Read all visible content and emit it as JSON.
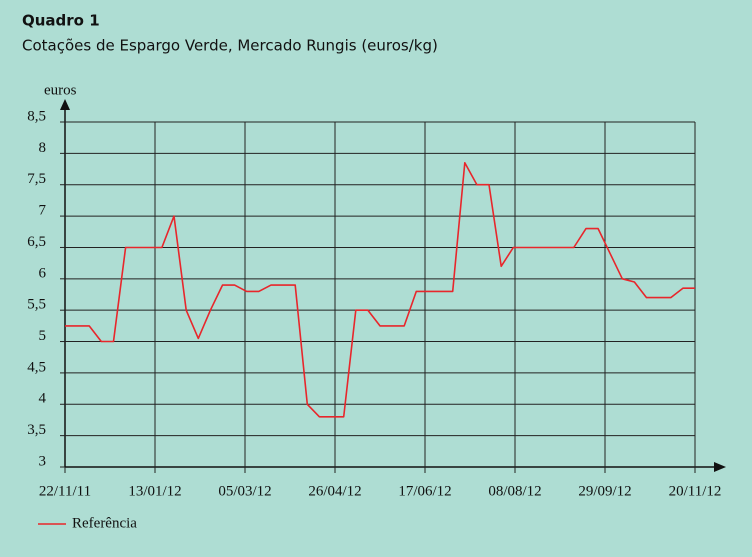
{
  "chart_data": {
    "type": "line",
    "title": "Quadro 1",
    "subtitle": "Cotações de Espargo Verde, Mercado Rungis (euros/kg)",
    "y_label": "euros",
    "x": [
      "22/11/11",
      "29/11/11",
      "06/12/11",
      "13/12/11",
      "20/12/11",
      "27/12/11",
      "03/01/12",
      "10/01/12",
      "17/01/12",
      "24/01/12",
      "31/01/12",
      "07/02/12",
      "14/02/12",
      "21/02/12",
      "28/02/12",
      "06/03/12",
      "13/03/12",
      "20/03/12",
      "27/03/12",
      "03/04/12",
      "10/04/12",
      "17/04/12",
      "24/04/12",
      "01/05/12",
      "08/05/12",
      "15/05/12",
      "22/05/12",
      "29/05/12",
      "05/06/12",
      "12/06/12",
      "19/06/12",
      "26/06/12",
      "03/07/12",
      "10/07/12",
      "17/07/12",
      "24/07/12",
      "31/07/12",
      "07/08/12",
      "14/08/12",
      "21/08/12",
      "28/08/12",
      "04/09/12",
      "11/09/12",
      "18/09/12",
      "25/09/12",
      "02/10/12",
      "09/10/12",
      "16/10/12",
      "23/10/12",
      "30/10/12",
      "06/11/12",
      "13/11/12",
      "20/11/12"
    ],
    "series": [
      {
        "name": "Referência",
        "color": "#e8262b",
        "values": [
          5.25,
          5.25,
          5.25,
          5.0,
          5.0,
          6.5,
          6.5,
          6.5,
          6.5,
          7.0,
          5.5,
          5.05,
          5.5,
          5.9,
          5.9,
          5.8,
          5.8,
          5.9,
          5.9,
          5.9,
          4.0,
          3.8,
          3.8,
          3.8,
          5.5,
          5.5,
          5.25,
          5.25,
          5.25,
          5.8,
          5.8,
          5.8,
          5.8,
          7.85,
          7.5,
          7.5,
          6.2,
          6.5,
          6.5,
          6.5,
          6.5,
          6.5,
          6.5,
          6.8,
          6.8,
          6.4,
          6.0,
          5.95,
          5.7,
          5.7,
          5.7,
          5.85,
          5.85
        ]
      }
    ],
    "xlim": [
      "22/11/11",
      "20/11/12"
    ],
    "xticks": [
      "22/11/11",
      "13/01/12",
      "05/03/12",
      "26/04/12",
      "17/06/12",
      "08/08/12",
      "29/09/12",
      "20/11/12"
    ],
    "ylim": [
      3,
      8.5
    ],
    "yticks": [
      3,
      {
        "value": 3.5,
        "label": "3,5"
      },
      4,
      {
        "value": 4.5,
        "label": "4,5"
      },
      5,
      {
        "value": 5.5,
        "label": "5,5"
      },
      6,
      {
        "value": 6.5,
        "label": "6,5"
      },
      7,
      {
        "value": 7.5,
        "label": "7,5"
      },
      8,
      {
        "value": 8.5,
        "label": "8,5"
      }
    ],
    "grid": true
  }
}
